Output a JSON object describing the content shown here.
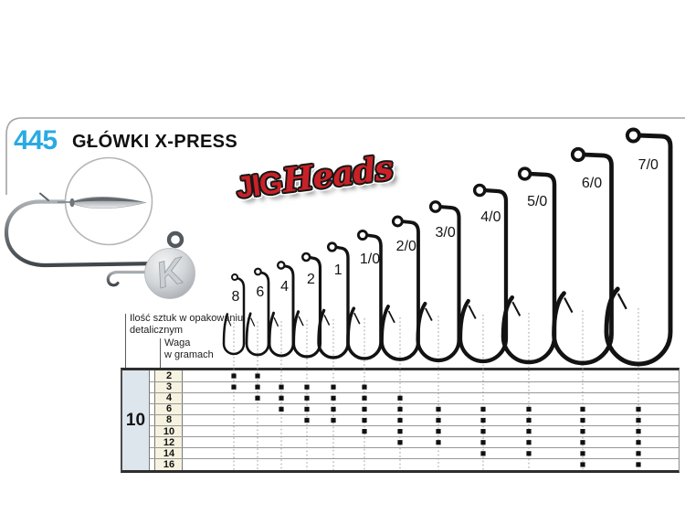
{
  "product": {
    "code": "445",
    "title": "GŁÓWKI X-PRESS"
  },
  "logo": {
    "jig": "JIG",
    "heads": "Heads"
  },
  "diagram": {
    "sizes": [
      "8",
      "6",
      "4",
      "2",
      "1",
      "1/0",
      "2/0",
      "3/0",
      "4/0",
      "5/0",
      "6/0",
      "7/0"
    ]
  },
  "table": {
    "qty_label_line1": "Ilość sztuk w opakowaniu",
    "qty_label_line2": "detalicznym",
    "weight_label_line1": "Waga",
    "weight_label_line2": "w gramach",
    "pack_quantity": "10",
    "size_columns": [
      "8",
      "6",
      "4",
      "2",
      "1",
      "1/0",
      "2/0",
      "3/0",
      "4/0",
      "5/0",
      "6/0",
      "7/0"
    ],
    "rows": [
      {
        "weight": "2",
        "available": [
          "8",
          "6"
        ]
      },
      {
        "weight": "3",
        "available": [
          "8",
          "6",
          "4",
          "2",
          "1",
          "1/0"
        ]
      },
      {
        "weight": "4",
        "available": [
          "6",
          "4",
          "2",
          "1",
          "1/0",
          "2/0"
        ]
      },
      {
        "weight": "6",
        "available": [
          "4",
          "2",
          "1",
          "1/0",
          "2/0",
          "3/0",
          "4/0",
          "5/0",
          "6/0",
          "7/0"
        ]
      },
      {
        "weight": "8",
        "available": [
          "2",
          "1",
          "1/0",
          "2/0",
          "3/0",
          "4/0",
          "5/0",
          "6/0",
          "7/0"
        ]
      },
      {
        "weight": "10",
        "available": [
          "1/0",
          "2/0",
          "3/0",
          "4/0",
          "5/0",
          "6/0",
          "7/0"
        ]
      },
      {
        "weight": "12",
        "available": [
          "2/0",
          "3/0",
          "4/0",
          "5/0",
          "6/0",
          "7/0"
        ]
      },
      {
        "weight": "14",
        "available": [
          "4/0",
          "5/0",
          "6/0",
          "7/0"
        ]
      },
      {
        "weight": "16",
        "available": [
          "6/0",
          "7/0"
        ]
      }
    ]
  },
  "colors": {
    "accent": "#29abe2",
    "logo_red": "#c92127",
    "qty_cell_bg": "#dce6ec",
    "weight_cell_bg": "#f6f3e0"
  }
}
